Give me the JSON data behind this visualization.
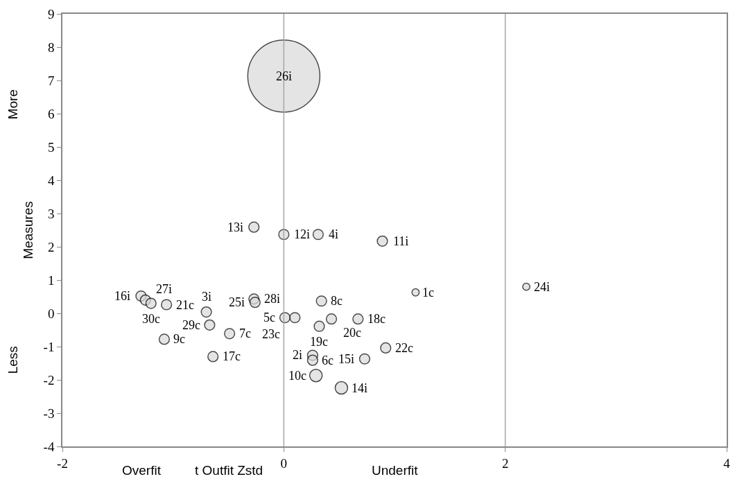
{
  "chart_data": {
    "type": "bubble",
    "xlabel": "t Outfit Zstd",
    "ylabel": "Measures",
    "x": [
      0,
      -0.27,
      0,
      0.31,
      0.89,
      1.19,
      2.19,
      -1.29,
      -1.25,
      -1.2,
      -1.06,
      -0.27,
      -0.26,
      -0.7,
      -0.67,
      -0.49,
      -1.08,
      -0.64,
      0.34,
      0.01,
      0.1,
      0.43,
      0.67,
      0.32,
      0.26,
      0.26,
      0.73,
      0.92,
      0.29,
      0.52
    ],
    "series": [
      {
        "color": "#d9d9d9",
        "values": [
          7.13,
          2.59,
          2.37,
          2.37,
          2.17,
          0.63,
          0.8,
          0.52,
          0.4,
          0.3,
          0.26,
          0.43,
          0.33,
          0.04,
          -0.35,
          -0.61,
          -0.78,
          -1.3,
          0.37,
          -0.13,
          -0.13,
          -0.17,
          -0.17,
          -0.39,
          -1.26,
          -1.41,
          -1.37,
          -1.04,
          -1.87,
          -2.24
        ],
        "sizes": [
          1,
          0.02,
          0.02,
          0.02,
          0.02,
          0.01,
          0.01,
          0.02,
          0.02,
          0.02,
          0.02,
          0.02,
          0.02,
          0.02,
          0.02,
          0.02,
          0.02,
          0.02,
          0.02,
          0.02,
          0.02,
          0.02,
          0.02,
          0.02,
          0.02,
          0.02,
          0.02,
          0.02,
          0.03,
          0.03
        ]
      }
    ],
    "annotations": [
      {
        "text": "26i",
        "x": 0,
        "y": 7.13
      },
      {
        "text": "13i",
        "x": -0.27,
        "y": 2.59
      },
      {
        "text": "12i",
        "x": 0,
        "y": 2.37
      },
      {
        "text": "4i",
        "x": 0.31,
        "y": 2.37
      },
      {
        "text": "11i",
        "x": 0.89,
        "y": 2.17
      },
      {
        "text": "1c",
        "x": 1.19,
        "y": 0.63
      },
      {
        "text": "24i",
        "x": 2.19,
        "y": 0.8
      },
      {
        "text": "16i",
        "x": -1.29,
        "y": 0.52
      },
      {
        "text": "27i",
        "x": -1.25,
        "y": 0.4
      },
      {
        "text": "30c",
        "x": -1.2,
        "y": 0.3
      },
      {
        "text": "21c",
        "x": -1.06,
        "y": 0.26
      },
      {
        "text": "28i",
        "x": -0.27,
        "y": 0.43
      },
      {
        "text": "25i",
        "x": -0.26,
        "y": 0.33
      },
      {
        "text": "3i",
        "x": -0.7,
        "y": 0.04
      },
      {
        "text": "29c",
        "x": -0.67,
        "y": -0.35
      },
      {
        "text": "7c",
        "x": -0.49,
        "y": -0.61
      },
      {
        "text": "9c",
        "x": -1.08,
        "y": -0.78
      },
      {
        "text": "17c",
        "x": -0.64,
        "y": -1.3
      },
      {
        "text": "8c",
        "x": 0.34,
        "y": 0.37
      },
      {
        "text": "5c",
        "x": 0.01,
        "y": -0.13
      },
      {
        "text": "23c",
        "x": 0.1,
        "y": -0.13
      },
      {
        "text": "20c",
        "x": 0.43,
        "y": -0.17
      },
      {
        "text": "18c",
        "x": 0.67,
        "y": -0.17
      },
      {
        "text": "19c",
        "x": 0.32,
        "y": -0.39
      },
      {
        "text": "2i",
        "x": 0.26,
        "y": -1.26
      },
      {
        "text": "6c",
        "x": 0.26,
        "y": -1.41
      },
      {
        "text": "15i",
        "x": 0.73,
        "y": -1.37
      },
      {
        "text": "22c",
        "x": 0.92,
        "y": -1.04
      },
      {
        "text": "10c",
        "x": 0.29,
        "y": -1.87
      },
      {
        "text": "14i",
        "x": 0.52,
        "y": -2.24
      },
      "Overfit",
      "Underfit",
      "More",
      "Less"
    ],
    "xlim": [
      -2,
      4
    ],
    "xticks": [
      -2,
      0,
      2,
      4
    ],
    "ylim": [
      -4,
      9
    ],
    "yticks": [
      -4,
      -3,
      -2,
      -1,
      0,
      1,
      2,
      3,
      4,
      5,
      6,
      7,
      8,
      9
    ],
    "ref_lines": [
      {
        "axis": "x",
        "value": 0,
        "color": "#a6a6a6"
      },
      {
        "axis": "x",
        "value": 2,
        "color": "#a6a6a6"
      }
    ],
    "grid": false
  }
}
